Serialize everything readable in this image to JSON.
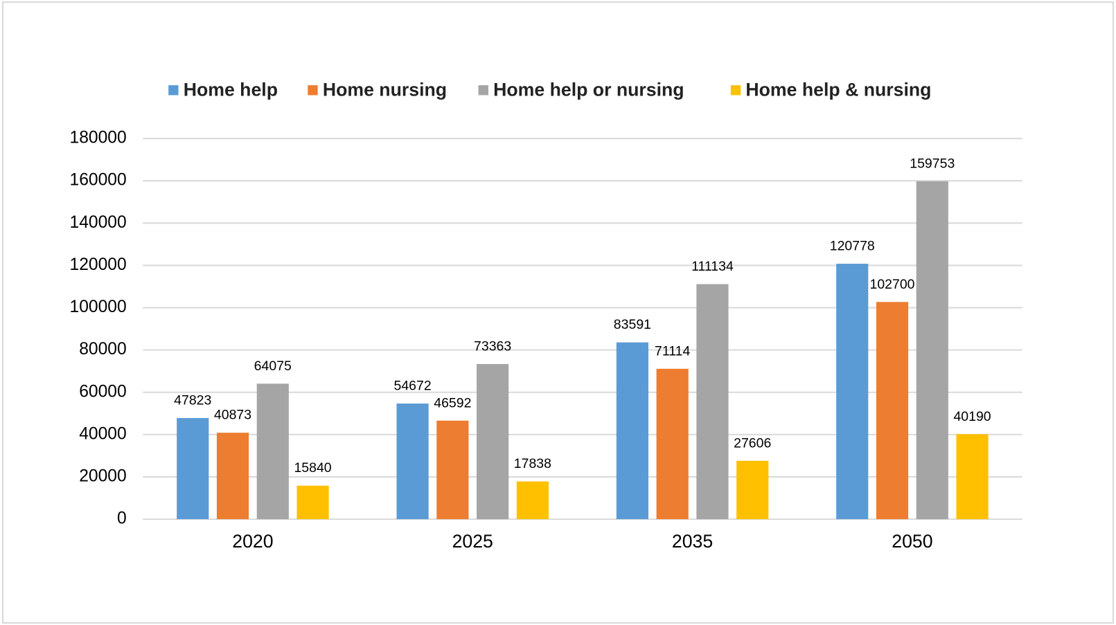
{
  "chart_data": {
    "type": "bar",
    "categories": [
      "2020",
      "2025",
      "2035",
      "2050"
    ],
    "series": [
      {
        "name": "Home help",
        "color": "#5b9bd5",
        "values": [
          47823,
          54672,
          83591,
          120778
        ]
      },
      {
        "name": "Home nursing",
        "color": "#ed7d31",
        "values": [
          40873,
          46592,
          71114,
          102700
        ]
      },
      {
        "name": "Home help or nursing",
        "color": "#a5a5a5",
        "values": [
          64075,
          73363,
          111134,
          159753
        ]
      },
      {
        "name": "Home help & nursing",
        "color": "#ffc000",
        "values": [
          15840,
          17838,
          27606,
          40190
        ]
      }
    ],
    "ylim": [
      0,
      180000
    ],
    "yticks": [
      0,
      20000,
      40000,
      60000,
      80000,
      100000,
      120000,
      140000,
      160000,
      180000
    ],
    "grid": true,
    "legend": "top"
  }
}
